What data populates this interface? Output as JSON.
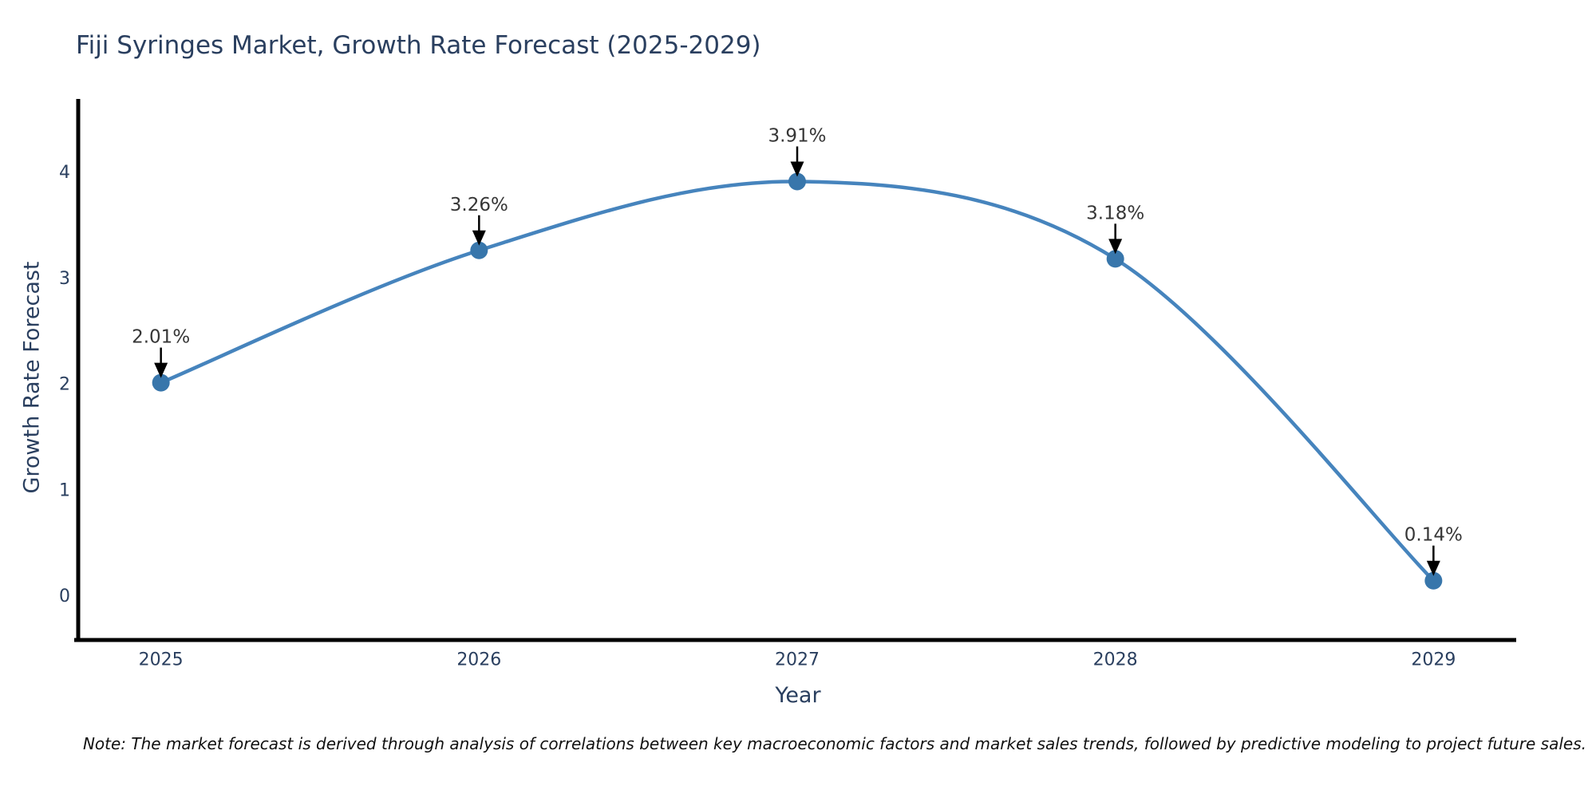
{
  "chart_data": {
    "type": "line",
    "line_shape": "spline",
    "title": "Fiji Syringes Market, Growth Rate Forecast (2025-2029)",
    "xlabel": "Year",
    "ylabel": "Growth Rate Forecast",
    "categories": [
      2025,
      2026,
      2027,
      2028,
      2029
    ],
    "series": [
      {
        "name": "Growth Rate Forecast",
        "values": [
          2.01,
          3.26,
          3.91,
          3.18,
          0.14
        ]
      }
    ],
    "point_labels": [
      "2.01%",
      "3.26%",
      "3.91%",
      "3.18%",
      "0.14%"
    ],
    "xticks": [
      "2025",
      "2026",
      "2027",
      "2028",
      "2029"
    ],
    "yticks": [
      "0",
      "1",
      "2",
      "3",
      "4"
    ],
    "xlim": [
      2024.74,
      2029.26
    ],
    "ylim": [
      -0.42,
      4.69
    ],
    "grid": false,
    "legend": "none",
    "note": "Note: The market forecast is derived through analysis of correlations between key macroeconomic factors and market sales trends, followed by predictive modeling to project future sales.",
    "colors": {
      "line": "#4684bd",
      "marker": "#3876ab",
      "axis": "#000000",
      "arrow": "#000000",
      "title_text": "#2a3f5f",
      "tick_text": "#2a3f5f",
      "annotation_text": "#363636",
      "note_text": "#111111"
    }
  }
}
